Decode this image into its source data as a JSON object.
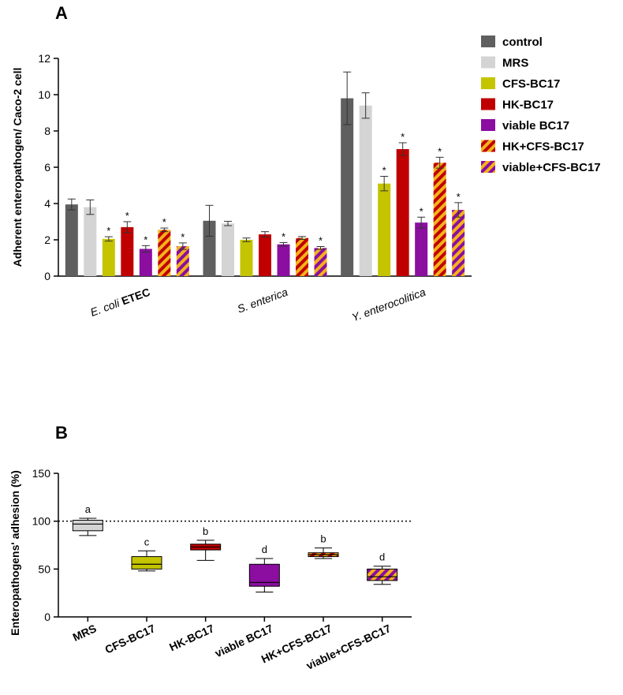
{
  "colors": {
    "control": "#5f5f5f",
    "mrs": "#d4d4d4",
    "cfs": "#c4c400",
    "hk": "#c00000",
    "viable": "#8b0ea0",
    "stripe_hk_a": "#c00000",
    "stripe_hk_b": "#f3b31a",
    "stripe_viable_a": "#8b0ea0",
    "stripe_viable_b": "#f3b31a"
  },
  "chart_data": [
    {
      "type": "bar",
      "panel": "A",
      "ylabel": "Adherent enteropathogen/ Caco-2 cell",
      "ylim": [
        0,
        12
      ],
      "yticks": [
        0,
        2,
        4,
        6,
        8,
        10,
        12
      ],
      "categories": [
        {
          "italic": "E. coli",
          "bold": "ETEC"
        },
        {
          "italic": "S. enterica",
          "bold": ""
        },
        {
          "italic": "Y. enterocolitica",
          "bold": ""
        }
      ],
      "series": [
        {
          "name": "control",
          "fill": "control",
          "values": [
            3.95,
            3.05,
            9.8
          ],
          "errors": [
            0.3,
            0.85,
            1.45
          ],
          "sig": [
            false,
            false,
            false
          ]
        },
        {
          "name": "MRS",
          "fill": "mrs",
          "values": [
            3.8,
            2.9,
            9.4
          ],
          "errors": [
            0.4,
            0.12,
            0.7
          ],
          "sig": [
            false,
            false,
            false
          ]
        },
        {
          "name": "CFS-BC17",
          "fill": "cfs",
          "values": [
            2.05,
            2.0,
            5.1
          ],
          "errors": [
            0.12,
            0.1,
            0.4
          ],
          "sig": [
            true,
            false,
            true
          ]
        },
        {
          "name": "HK-BC17",
          "fill": "hk",
          "values": [
            2.7,
            2.3,
            7.0
          ],
          "errors": [
            0.3,
            0.15,
            0.35
          ],
          "sig": [
            true,
            false,
            true
          ]
        },
        {
          "name": "viable BC17",
          "fill": "viable",
          "values": [
            1.5,
            1.75,
            2.95
          ],
          "errors": [
            0.18,
            0.1,
            0.3
          ],
          "sig": [
            true,
            true,
            true
          ]
        },
        {
          "name": "HK+CFS-BC17",
          "fill": "stripe-hk",
          "values": [
            2.55,
            2.1,
            6.25
          ],
          "errors": [
            0.1,
            0.08,
            0.3
          ],
          "sig": [
            true,
            false,
            true
          ]
        },
        {
          "name": "viable+CFS-BC17",
          "fill": "stripe-viable",
          "values": [
            1.65,
            1.55,
            3.65
          ],
          "errors": [
            0.18,
            0.08,
            0.4
          ],
          "sig": [
            true,
            true,
            true
          ]
        }
      ],
      "sig_marker": "*"
    },
    {
      "type": "boxplot",
      "panel": "B",
      "ylabel": "Enteropathogens' adhesion (%)",
      "ylim": [
        0,
        150
      ],
      "yticks": [
        0,
        50,
        100,
        150
      ],
      "reference_line": 100,
      "boxes": [
        {
          "label": "MRS",
          "fill": "mrs",
          "min": 85,
          "q1": 90,
          "median": 97,
          "q3": 101,
          "max": 103,
          "letter": "a"
        },
        {
          "label": "CFS-BC17",
          "fill": "cfs",
          "min": 48,
          "q1": 50,
          "median": 55,
          "q3": 63,
          "max": 69,
          "letter": "c"
        },
        {
          "label": "HK-BC17",
          "fill": "hk",
          "min": 59,
          "q1": 70,
          "median": 73,
          "q3": 76,
          "max": 80,
          "letter": "b"
        },
        {
          "label": "viable BC17",
          "fill": "viable",
          "min": 26,
          "q1": 32,
          "median": 36,
          "q3": 55,
          "max": 61,
          "letter": "d"
        },
        {
          "label": "HK+CFS-BC17",
          "fill": "stripe-hk",
          "min": 61,
          "q1": 63,
          "median": 65,
          "q3": 67,
          "max": 72,
          "letter": "b"
        },
        {
          "label": "viable+CFS-BC17",
          "fill": "stripe-viable",
          "min": 34,
          "q1": 38,
          "median": 42,
          "q3": 50,
          "max": 53,
          "letter": "d"
        }
      ]
    }
  ]
}
